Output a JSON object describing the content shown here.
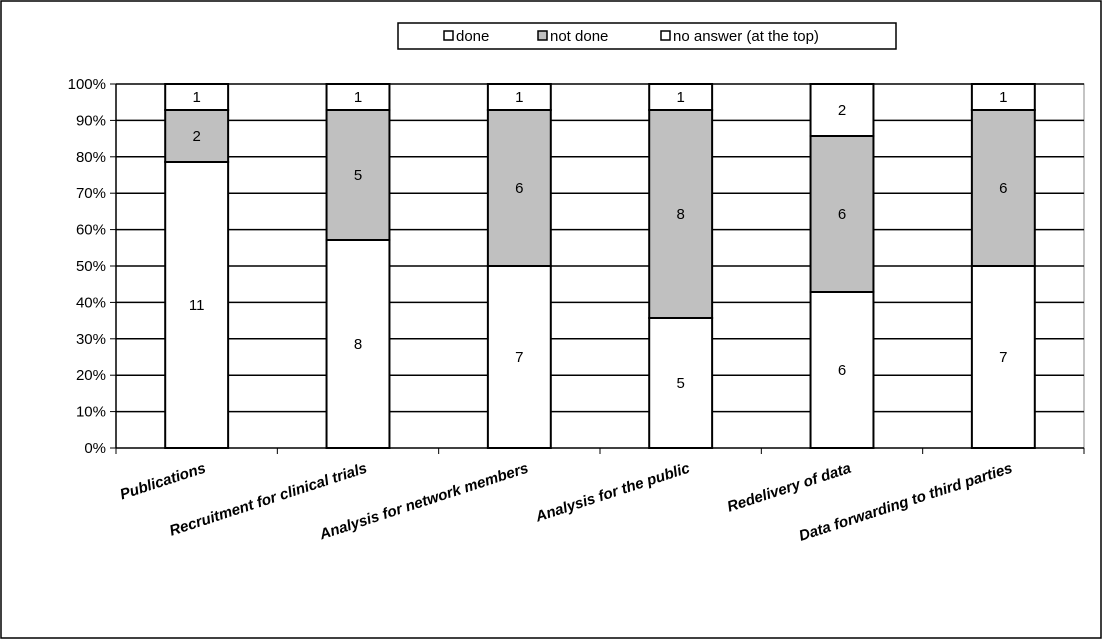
{
  "chart_data": {
    "type": "bar",
    "stacked": true,
    "percent_stacked": true,
    "categories": [
      "Publications",
      "Recruitment for clinical trials",
      "Analysis for network members",
      "Analysis for the public",
      "Redelivery of data",
      "Data forwarding to third parties"
    ],
    "series": [
      {
        "name": "done",
        "values": [
          11,
          8,
          7,
          5,
          6,
          7
        ],
        "color": "#ffffff"
      },
      {
        "name": "not done",
        "values": [
          2,
          5,
          6,
          8,
          6,
          6
        ],
        "color": "#c0c0c0"
      },
      {
        "name": "no answer (at the top)",
        "values": [
          1,
          1,
          1,
          1,
          2,
          1
        ],
        "color": "#ffffff"
      }
    ],
    "y_ticks": [
      "0%",
      "10%",
      "20%",
      "30%",
      "40%",
      "50%",
      "60%",
      "70%",
      "80%",
      "90%",
      "100%"
    ],
    "ylim": [
      0,
      100
    ],
    "grid": true,
    "legend_position": "top-center"
  }
}
